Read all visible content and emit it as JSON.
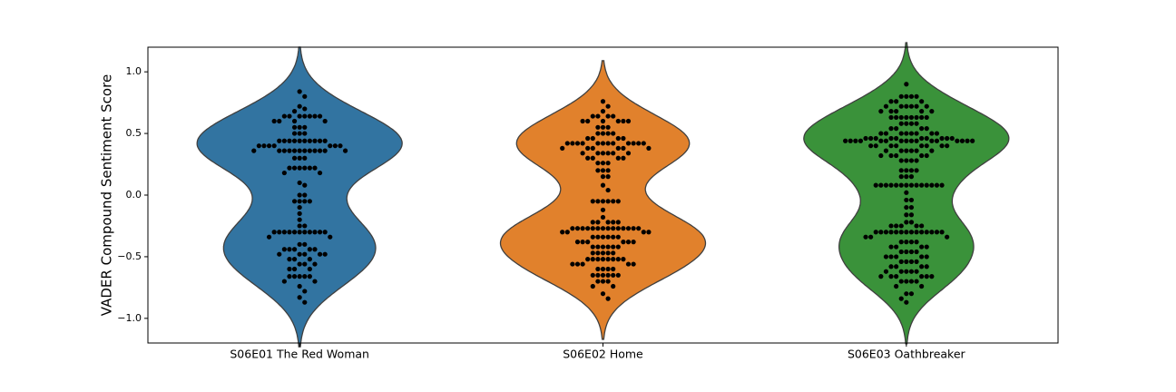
{
  "chart_data": {
    "type": "violin",
    "ylabel": "VADER Compound Sentiment Score",
    "categories": [
      "S06E01 The Red Woman",
      "S06E02 Home",
      "S06E03 Oathbreaker"
    ],
    "ylim": [
      -1.2,
      1.2
    ],
    "yticks": [
      {
        "value": -1,
        "label": "−1.0"
      },
      {
        "value": -0.5,
        "label": "−0.5"
      },
      {
        "value": 0,
        "label": "0.0"
      },
      {
        "value": 0.5,
        "label": "0.5"
      },
      {
        "value": 1,
        "label": "1.0"
      }
    ],
    "point_color": "#000000",
    "groups": [
      {
        "color": "#3274a1",
        "values": [
          0.84,
          0.8,
          0.72,
          0.7,
          0.68,
          0.64,
          0.64,
          0.64,
          0.64,
          0.64,
          0.64,
          0.64,
          0.6,
          0.6,
          0.6,
          0.6,
          0.55,
          0.55,
          0.55,
          0.5,
          0.5,
          0.5,
          0.44,
          0.44,
          0.44,
          0.44,
          0.44,
          0.44,
          0.44,
          0.44,
          0.44,
          0.44,
          0.4,
          0.4,
          0.4,
          0.4,
          0.4,
          0.4,
          0.4,
          0.36,
          0.36,
          0.36,
          0.36,
          0.36,
          0.36,
          0.36,
          0.36,
          0.36,
          0.36,
          0.36,
          0.36,
          0.3,
          0.3,
          0.3,
          0.22,
          0.22,
          0.22,
          0.22,
          0.22,
          0.22,
          0.18,
          0.18,
          0.1,
          0.08,
          0.0,
          0.0,
          -0.05,
          -0.05,
          -0.05,
          -0.05,
          -0.1,
          -0.15,
          -0.2,
          -0.25,
          -0.25,
          -0.3,
          -0.3,
          -0.3,
          -0.3,
          -0.3,
          -0.3,
          -0.3,
          -0.3,
          -0.3,
          -0.3,
          -0.3,
          -0.34,
          -0.34,
          -0.4,
          -0.4,
          -0.44,
          -0.44,
          -0.44,
          -0.44,
          -0.44,
          -0.48,
          -0.48,
          -0.48,
          -0.48,
          -0.48,
          -0.52,
          -0.52,
          -0.52,
          -0.56,
          -0.56,
          -0.56,
          -0.6,
          -0.6,
          -0.6,
          -0.66,
          -0.66,
          -0.66,
          -0.66,
          -0.66,
          -0.7,
          -0.7,
          -0.74,
          -0.78,
          -0.83,
          -0.87
        ]
      },
      {
        "color": "#e1812c",
        "values": [
          0.76,
          0.72,
          0.68,
          0.64,
          0.64,
          0.64,
          0.64,
          0.6,
          0.6,
          0.6,
          0.6,
          0.6,
          0.6,
          0.55,
          0.55,
          0.55,
          0.5,
          0.5,
          0.5,
          0.5,
          0.46,
          0.46,
          0.46,
          0.46,
          0.42,
          0.42,
          0.42,
          0.42,
          0.42,
          0.42,
          0.42,
          0.42,
          0.42,
          0.42,
          0.42,
          0.42,
          0.38,
          0.38,
          0.38,
          0.38,
          0.38,
          0.38,
          0.34,
          0.34,
          0.34,
          0.34,
          0.34,
          0.34,
          0.3,
          0.3,
          0.3,
          0.3,
          0.26,
          0.26,
          0.26,
          0.2,
          0.2,
          0.2,
          0.15,
          0.15,
          0.08,
          0.04,
          -0.05,
          -0.05,
          -0.05,
          -0.05,
          -0.05,
          -0.05,
          -0.12,
          -0.18,
          -0.22,
          -0.22,
          -0.22,
          -0.22,
          -0.22,
          -0.27,
          -0.27,
          -0.27,
          -0.27,
          -0.27,
          -0.27,
          -0.27,
          -0.27,
          -0.27,
          -0.27,
          -0.27,
          -0.27,
          -0.27,
          -0.27,
          -0.3,
          -0.3,
          -0.3,
          -0.3,
          -0.34,
          -0.34,
          -0.34,
          -0.34,
          -0.34,
          -0.34,
          -0.38,
          -0.38,
          -0.38,
          -0.38,
          -0.38,
          -0.38,
          -0.42,
          -0.42,
          -0.42,
          -0.42,
          -0.42,
          -0.42,
          -0.47,
          -0.47,
          -0.47,
          -0.47,
          -0.47,
          -0.52,
          -0.52,
          -0.52,
          -0.52,
          -0.52,
          -0.52,
          -0.52,
          -0.52,
          -0.56,
          -0.56,
          -0.56,
          -0.56,
          -0.56,
          -0.6,
          -0.6,
          -0.6,
          -0.6,
          -0.65,
          -0.65,
          -0.65,
          -0.65,
          -0.65,
          -0.65,
          -0.7,
          -0.7,
          -0.7,
          -0.74,
          -0.74,
          -0.8,
          -0.84
        ]
      },
      {
        "color": "#3a923a",
        "values": [
          0.9,
          0.8,
          0.8,
          0.8,
          0.8,
          0.76,
          0.76,
          0.76,
          0.72,
          0.72,
          0.72,
          0.72,
          0.72,
          0.72,
          0.68,
          0.68,
          0.68,
          0.68,
          0.68,
          0.63,
          0.63,
          0.63,
          0.63,
          0.63,
          0.63,
          0.63,
          0.63,
          0.58,
          0.58,
          0.58,
          0.58,
          0.54,
          0.54,
          0.54,
          0.54,
          0.5,
          0.5,
          0.5,
          0.5,
          0.5,
          0.5,
          0.5,
          0.5,
          0.46,
          0.46,
          0.46,
          0.46,
          0.46,
          0.46,
          0.46,
          0.46,
          0.46,
          0.46,
          0.44,
          0.44,
          0.44,
          0.44,
          0.44,
          0.44,
          0.44,
          0.44,
          0.44,
          0.44,
          0.44,
          0.44,
          0.44,
          0.44,
          0.44,
          0.44,
          0.4,
          0.4,
          0.4,
          0.4,
          0.4,
          0.4,
          0.4,
          0.4,
          0.36,
          0.36,
          0.36,
          0.36,
          0.36,
          0.36,
          0.32,
          0.32,
          0.32,
          0.32,
          0.32,
          0.28,
          0.28,
          0.28,
          0.28,
          0.2,
          0.2,
          0.2,
          0.2,
          0.15,
          0.15,
          0.15,
          0.08,
          0.08,
          0.08,
          0.08,
          0.08,
          0.08,
          0.08,
          0.08,
          0.08,
          0.08,
          0.08,
          0.08,
          0.08,
          0.08,
          0.02,
          -0.04,
          -0.04,
          -0.1,
          -0.1,
          -0.16,
          -0.16,
          -0.22,
          -0.22,
          -0.25,
          -0.25,
          -0.25,
          -0.25,
          -0.25,
          -0.3,
          -0.3,
          -0.3,
          -0.3,
          -0.3,
          -0.3,
          -0.3,
          -0.3,
          -0.3,
          -0.3,
          -0.3,
          -0.3,
          -0.3,
          -0.3,
          -0.34,
          -0.34,
          -0.34,
          -0.38,
          -0.38,
          -0.38,
          -0.38,
          -0.42,
          -0.42,
          -0.42,
          -0.42,
          -0.46,
          -0.46,
          -0.46,
          -0.46,
          -0.5,
          -0.5,
          -0.5,
          -0.5,
          -0.5,
          -0.54,
          -0.54,
          -0.54,
          -0.54,
          -0.58,
          -0.58,
          -0.58,
          -0.58,
          -0.62,
          -0.62,
          -0.62,
          -0.62,
          -0.62,
          -0.66,
          -0.66,
          -0.66,
          -0.66,
          -0.66,
          -0.66,
          -0.7,
          -0.7,
          -0.7,
          -0.7,
          -0.74,
          -0.74,
          -0.8,
          -0.8,
          -0.84,
          -0.87
        ]
      }
    ]
  }
}
